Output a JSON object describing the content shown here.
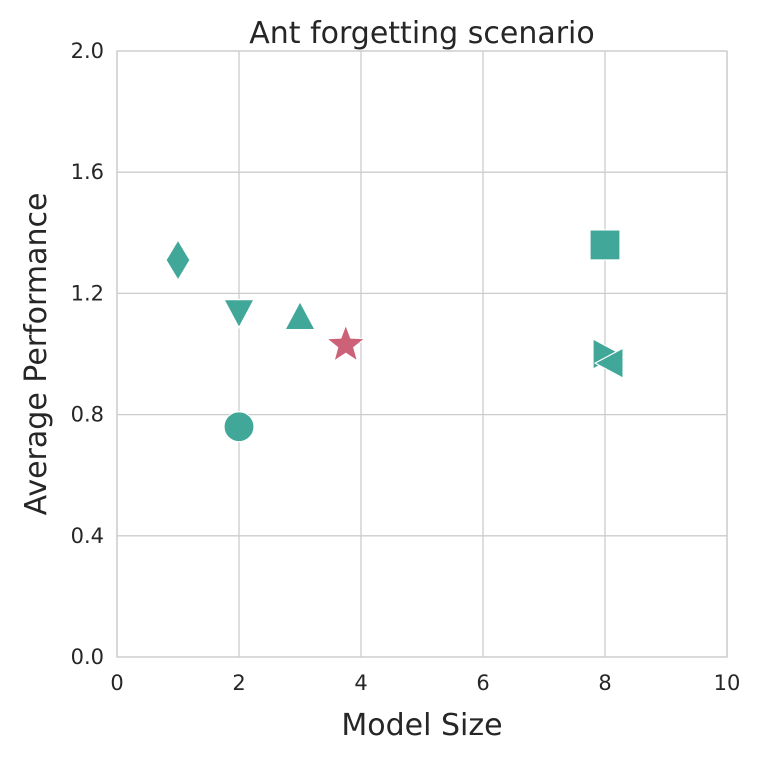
{
  "chart_data": {
    "type": "scatter",
    "title": "Ant forgetting scenario",
    "xlabel": "Model Size",
    "ylabel": "Average Performance",
    "xlim": [
      0,
      10
    ],
    "ylim": [
      0,
      2.0
    ],
    "xticks": [
      "0",
      "2",
      "4",
      "6",
      "8",
      "10"
    ],
    "yticks": [
      "0.0",
      "0.4",
      "0.8",
      "1.2",
      "1.6",
      "2.0"
    ],
    "grid": true,
    "colors": {
      "baseline": "#41a899",
      "highlight": "#cc6177"
    },
    "points": [
      {
        "name": "diamond",
        "marker": "diamond",
        "x": 1.0,
        "y": 1.31,
        "color": "#41a899"
      },
      {
        "name": "triangle-down",
        "marker": "triangle-down",
        "x": 2.0,
        "y": 1.14,
        "color": "#41a899"
      },
      {
        "name": "circle",
        "marker": "circle",
        "x": 2.0,
        "y": 0.76,
        "color": "#41a899"
      },
      {
        "name": "triangle-up",
        "marker": "triangle-up",
        "x": 3.0,
        "y": 1.12,
        "color": "#41a899"
      },
      {
        "name": "star",
        "marker": "star",
        "x": 3.75,
        "y": 1.03,
        "color": "#cc6177"
      },
      {
        "name": "square",
        "marker": "square",
        "x": 8.0,
        "y": 1.36,
        "color": "#41a899"
      },
      {
        "name": "triangle-right",
        "marker": "triangle-right",
        "x": 8.0,
        "y": 1.0,
        "color": "#41a899"
      },
      {
        "name": "triangle-left",
        "marker": "triangle-left",
        "x": 8.1,
        "y": 0.97,
        "color": "#41a899"
      }
    ]
  }
}
